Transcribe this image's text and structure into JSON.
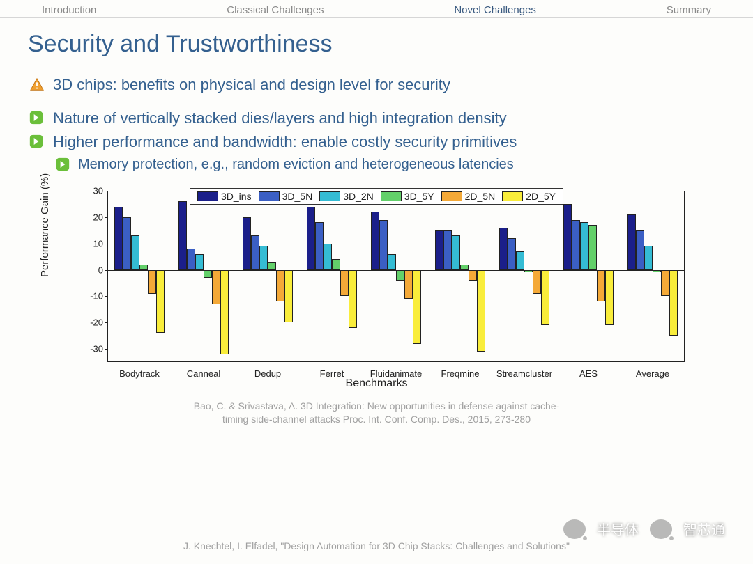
{
  "nav": {
    "items": [
      {
        "label": "Introduction",
        "active": false
      },
      {
        "label": "Classical Challenges",
        "active": false
      },
      {
        "label": "Novel Challenges",
        "active": true
      },
      {
        "label": "Summary",
        "active": false
      }
    ]
  },
  "title": "Security and Trustworthiness",
  "bullets": [
    {
      "icon": "warn",
      "text": "3D chips: benefits on physical and design level for security"
    },
    {
      "icon": "arrow",
      "text": "Nature of vertically stacked dies/layers and high integration density"
    },
    {
      "icon": "arrow",
      "text": "Higher performance and bandwidth: enable costly security primitives"
    },
    {
      "icon": "arrow",
      "sub": true,
      "text": "Memory protection, e.g., random eviction and heterogeneous latencies"
    }
  ],
  "chart": {
    "type": "bar",
    "ylabel": "Performance Gain (%)",
    "xlabel": "Benchmarks",
    "ylim": [
      -35,
      30
    ],
    "ytick_step": 10,
    "background_color": "#ffffff",
    "frame_color": "#222222",
    "series": [
      {
        "name": "3D_ins",
        "color": "#1b1f8a"
      },
      {
        "name": "3D_5N",
        "color": "#3b5fc4"
      },
      {
        "name": "3D_2N",
        "color": "#35bcd4"
      },
      {
        "name": "3D_5Y",
        "color": "#63d06a"
      },
      {
        "name": "2D_5N",
        "color": "#f4a938"
      },
      {
        "name": "2D_5Y",
        "color": "#f9ed3b"
      }
    ],
    "categories": [
      "Bodytrack",
      "Canneal",
      "Dedup",
      "Ferret",
      "Fluidanimate",
      "Freqmine",
      "Streamcluster",
      "AES",
      "Average"
    ],
    "values": {
      "3D_ins": [
        24,
        26,
        20,
        24,
        22,
        15,
        16,
        25,
        21
      ],
      "3D_5N": [
        20,
        8,
        13,
        18,
        19,
        15,
        12,
        19,
        15
      ],
      "3D_2N": [
        13,
        6,
        9,
        10,
        6,
        13,
        7,
        18,
        9
      ],
      "3D_5Y": [
        2,
        -3,
        3,
        4,
        -4,
        2,
        -1,
        17,
        -1
      ],
      "2D_5N": [
        -9,
        -13,
        -12,
        -10,
        -11,
        -4,
        -9,
        -12,
        -10
      ],
      "2D_5Y": [
        -24,
        -32,
        -20,
        -22,
        -28,
        -31,
        -21,
        -21,
        -25
      ]
    },
    "bar_width": 0.13,
    "label_fontsize": 13,
    "axis_fontsize": 15
  },
  "citation": {
    "line1": "Bao, C. & Srivastava, A. 3D Integration: New opportunities in defense against cache-",
    "line2": "timing side-channel attacks Proc. Int. Conf. Comp. Des., 2015, 273-280"
  },
  "footer": "J. Knechtel, I. Elfadel, \"Design Automation for 3D Chip Stacks: Challenges and Solutions\"",
  "watermark": {
    "left": "半导体",
    "right": "智芯通"
  }
}
